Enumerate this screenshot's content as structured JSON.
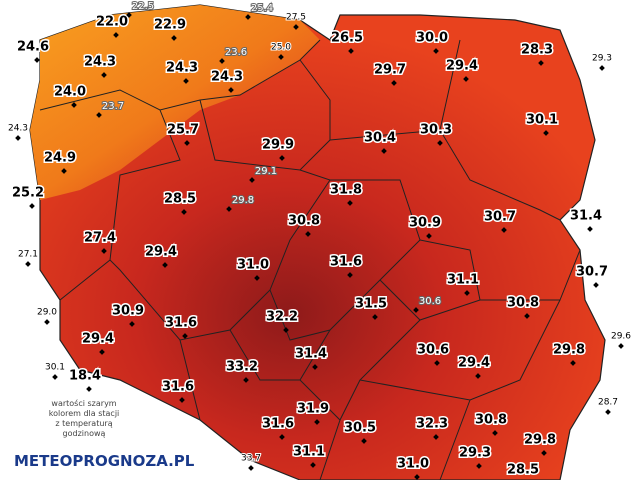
{
  "stations": [
    "22.0",
    "22.9",
    "24.6",
    "24.3",
    "24.3",
    "24.3",
    "24.0",
    "27.5",
    "25.0",
    "26.5",
    "30.0",
    "28.3",
    "29.3",
    "29.7",
    "29.4",
    "24.3",
    "25.7",
    "30.1",
    "30.4",
    "30.3",
    "29.9",
    "24.9",
    "31.8",
    "25.2",
    "28.5",
    "31.4",
    "30.8",
    "30.9",
    "30.7",
    "27.4",
    "27.1",
    "29.4",
    "31.6",
    "31.0",
    "30.7",
    "31.1",
    "29.0",
    "31.5",
    "30.8",
    "30.9",
    "31.6",
    "32.2",
    "29.6",
    "29.4",
    "30.6",
    "29.8",
    "30.1",
    "18.4",
    "33.2",
    "31.4",
    "29.4",
    "31.6",
    "28.7",
    "31.9",
    "31.6",
    "30.5",
    "32.3",
    "30.8",
    "29.8",
    "33.7",
    "31.1",
    "29.3",
    "31.0",
    "28.5"
  ],
  "hourly_stations": [
    "22.5",
    "23.6",
    "25.4",
    "23.7",
    "29.1",
    "29.8",
    "30.6"
  ],
  "caption": [
    "wartości szarym",
    "kolorem dla stacji",
    "z temperaturą",
    "godzinową"
  ],
  "logo": "METEOPROGNOZA.PL"
}
